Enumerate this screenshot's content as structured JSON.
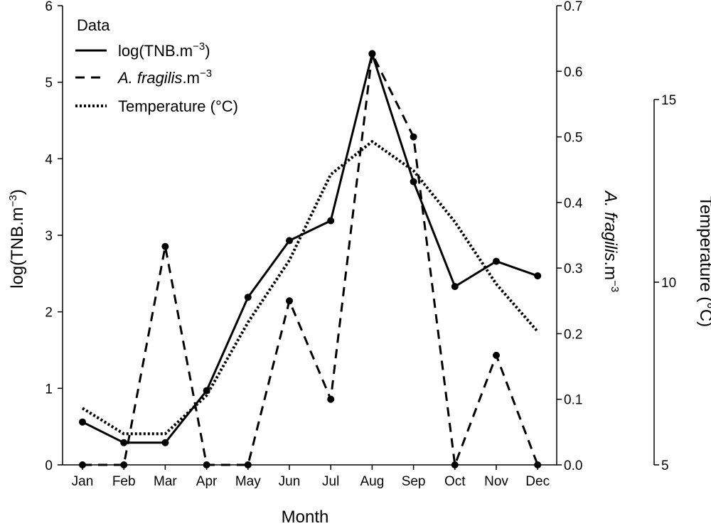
{
  "chart_data": {
    "type": "line",
    "categories": [
      "Jan",
      "Feb",
      "Mar",
      "Apr",
      "May",
      "Jun",
      "Jul",
      "Aug",
      "Sep",
      "Oct",
      "Nov",
      "Dec"
    ],
    "xlabel": "Month",
    "axes": {
      "left": {
        "label_main": "log(TNB.m",
        "label_sup": "−3",
        "label_close": ")",
        "ylim": [
          0,
          6
        ],
        "ticks": [
          0,
          1,
          2,
          3,
          4,
          5,
          6
        ],
        "tick_labels": [
          "0",
          "1",
          "2",
          "3",
          "4",
          "5",
          "6"
        ]
      },
      "right": {
        "label_italic": "A. fragilis",
        "label_main": ".m",
        "label_sup": "−3",
        "ylim": [
          0,
          0.7
        ],
        "ticks": [
          0.0,
          0.1,
          0.2,
          0.3,
          0.4,
          0.5,
          0.6,
          0.7
        ],
        "tick_labels": [
          "0.0",
          "0.1",
          "0.2",
          "0.3",
          "0.4",
          "0.5",
          "0.6",
          "0.7"
        ]
      },
      "temperature": {
        "label": "Temperature (°C)",
        "ylim": [
          5,
          15
        ],
        "ticks": [
          5,
          10,
          15
        ],
        "tick_labels": [
          "5",
          "10",
          "15"
        ]
      }
    },
    "series": [
      {
        "name": "log(TNB.m−3)",
        "axis": "left",
        "style": "solid",
        "markers": true,
        "values": [
          0.56,
          0.29,
          0.29,
          0.97,
          2.19,
          2.93,
          3.19,
          5.37,
          3.7,
          2.33,
          2.66,
          2.47
        ]
      },
      {
        "name": "A. fragilis.m−3",
        "axis": "right",
        "style": "dashed",
        "markers": true,
        "values": [
          0.0,
          0.0,
          0.333,
          0.0,
          0.0,
          0.25,
          0.1,
          0.627,
          0.5,
          0.0,
          0.167,
          0.0
        ]
      },
      {
        "name": "Temperature (°C)",
        "axis": "temperature",
        "style": "dotted",
        "markers": false,
        "values": [
          6.55,
          5.85,
          5.85,
          6.9,
          8.9,
          10.6,
          12.95,
          13.85,
          13.05,
          11.65,
          9.95,
          8.65
        ]
      }
    ],
    "legend": {
      "title": "Data",
      "position": "top-left",
      "entries": [
        {
          "main": "log(TNB.m",
          "sup": "−3",
          "close": ")"
        },
        {
          "italic": "A. fragilis",
          "main": ".m",
          "sup": "−3"
        },
        {
          "main": "Temperature (°C)"
        }
      ]
    }
  }
}
